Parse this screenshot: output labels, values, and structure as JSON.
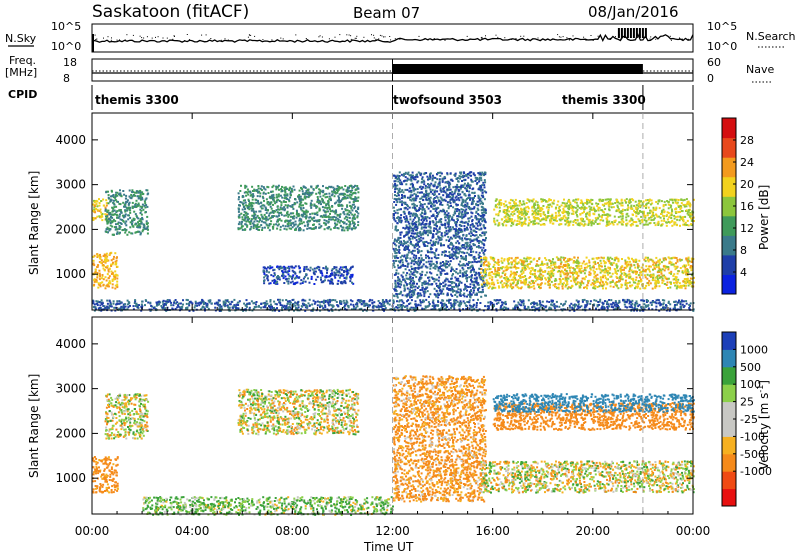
{
  "header": {
    "station": "Saskatoon (fitACF)",
    "beam": "Beam 07",
    "date": "08/Jan/2016"
  },
  "noise_panel": {
    "left_label": "N.Sky",
    "left_ticks": [
      "10^5",
      "10^0"
    ],
    "right_ticks": [
      "10^5",
      "10^0"
    ],
    "right_label": "N.Search"
  },
  "freq_panel": {
    "left_label_1": "Freq.",
    "left_label_2": "[MHz]",
    "left_ticks": [
      "18",
      "8"
    ],
    "right_ticks": [
      "60",
      "0"
    ],
    "right_label": "Nave"
  },
  "cpid": {
    "label": "CPID",
    "modes": [
      {
        "name": "themis 3300",
        "start_hour": 0,
        "end_hour": 12
      },
      {
        "name": "twofsound 3503",
        "start_hour": 12,
        "end_hour": 22
      },
      {
        "name": "themis 3300",
        "start_hour": 22,
        "end_hour": 24
      }
    ]
  },
  "x_axis": {
    "label": "Time UT",
    "tick_labels": [
      "00:00",
      "04:00",
      "08:00",
      "12:00",
      "16:00",
      "20:00",
      "00:00"
    ]
  },
  "colors": {
    "power_scale": [
      "#0b22e0",
      "#1f3fa8",
      "#3a7a8a",
      "#3f9a5a",
      "#8cc63c",
      "#f2d21e",
      "#f39a1e",
      "#e8481c",
      "#d40e10"
    ],
    "velocity_scale": [
      "#e81010",
      "#f04a14",
      "#f58a1a",
      "#f6b020",
      "#c8c8c4",
      "#c8c8c4",
      "#8cd04a",
      "#3aa23a",
      "#2e86b4",
      "#1c3fb8"
    ]
  },
  "chart_data": [
    {
      "type": "heatmap",
      "panel": "power",
      "ylabel": "Slant Range [km]",
      "xlabel": "Time UT",
      "ylim": [
        200,
        4600
      ],
      "xlim": [
        0,
        24
      ],
      "yticks": [
        1000,
        2000,
        3000,
        4000
      ],
      "colorbar": {
        "label": "Power [dB]",
        "ticks": [
          4,
          8,
          12,
          16,
          20,
          24,
          28
        ],
        "range": [
          0,
          32
        ]
      },
      "features": [
        {
          "hours": [
            0.0,
            1.0
          ],
          "range_km": [
            700,
            1500
          ],
          "power_db": 24
        },
        {
          "hours": [
            0.0,
            0.6
          ],
          "range_km": [
            2200,
            2700
          ],
          "power_db": 22
        },
        {
          "hours": [
            0.5,
            2.2
          ],
          "range_km": [
            1900,
            2900
          ],
          "power_db": 12
        },
        {
          "hours": [
            5.8,
            10.6
          ],
          "range_km": [
            2000,
            3000
          ],
          "power_db": 12
        },
        {
          "hours": [
            6.8,
            10.4
          ],
          "range_km": [
            800,
            1200
          ],
          "power_db": 6
        },
        {
          "hours": [
            12.0,
            15.7
          ],
          "range_km": [
            500,
            3300
          ],
          "power_db": 8
        },
        {
          "hours": [
            15.5,
            24.0
          ],
          "range_km": [
            700,
            1400
          ],
          "power_db": 22
        },
        {
          "hours": [
            16.0,
            24.0
          ],
          "range_km": [
            2100,
            2700
          ],
          "power_db": 20
        },
        {
          "hours": [
            0.0,
            24.0
          ],
          "range_km": [
            200,
            450
          ],
          "power_db": 8
        }
      ]
    },
    {
      "type": "heatmap",
      "panel": "velocity",
      "ylabel": "Slant Range [km]",
      "xlabel": "Time UT",
      "ylim": [
        200,
        4600
      ],
      "xlim": [
        0,
        24
      ],
      "yticks": [
        1000,
        2000,
        3000,
        4000
      ],
      "colorbar": {
        "label": "Velocity [m s^-1]",
        "ticks": [
          1000,
          500,
          100,
          25,
          -25,
          -100,
          -500,
          -1000
        ]
      },
      "features": [
        {
          "hours": [
            0.0,
            1.0
          ],
          "range_km": [
            700,
            1500
          ],
          "velocity": -200
        },
        {
          "hours": [
            0.5,
            2.2
          ],
          "range_km": [
            1900,
            2900
          ],
          "velocity": 0
        },
        {
          "hours": [
            5.8,
            10.6
          ],
          "range_km": [
            2000,
            3000
          ],
          "velocity": 0
        },
        {
          "hours": [
            12.0,
            15.7
          ],
          "range_km": [
            500,
            3300
          ],
          "velocity": -150
        },
        {
          "hours": [
            16.0,
            24.0
          ],
          "range_km": [
            2100,
            2700
          ],
          "velocity": -300
        },
        {
          "hours": [
            16.0,
            24.0
          ],
          "range_km": [
            2500,
            2900
          ],
          "velocity": 700
        },
        {
          "hours": [
            15.5,
            24.0
          ],
          "range_km": [
            700,
            1400
          ],
          "velocity": 0
        },
        {
          "hours": [
            2.0,
            12.0
          ],
          "range_km": [
            200,
            600
          ],
          "velocity": 100
        }
      ]
    }
  ]
}
